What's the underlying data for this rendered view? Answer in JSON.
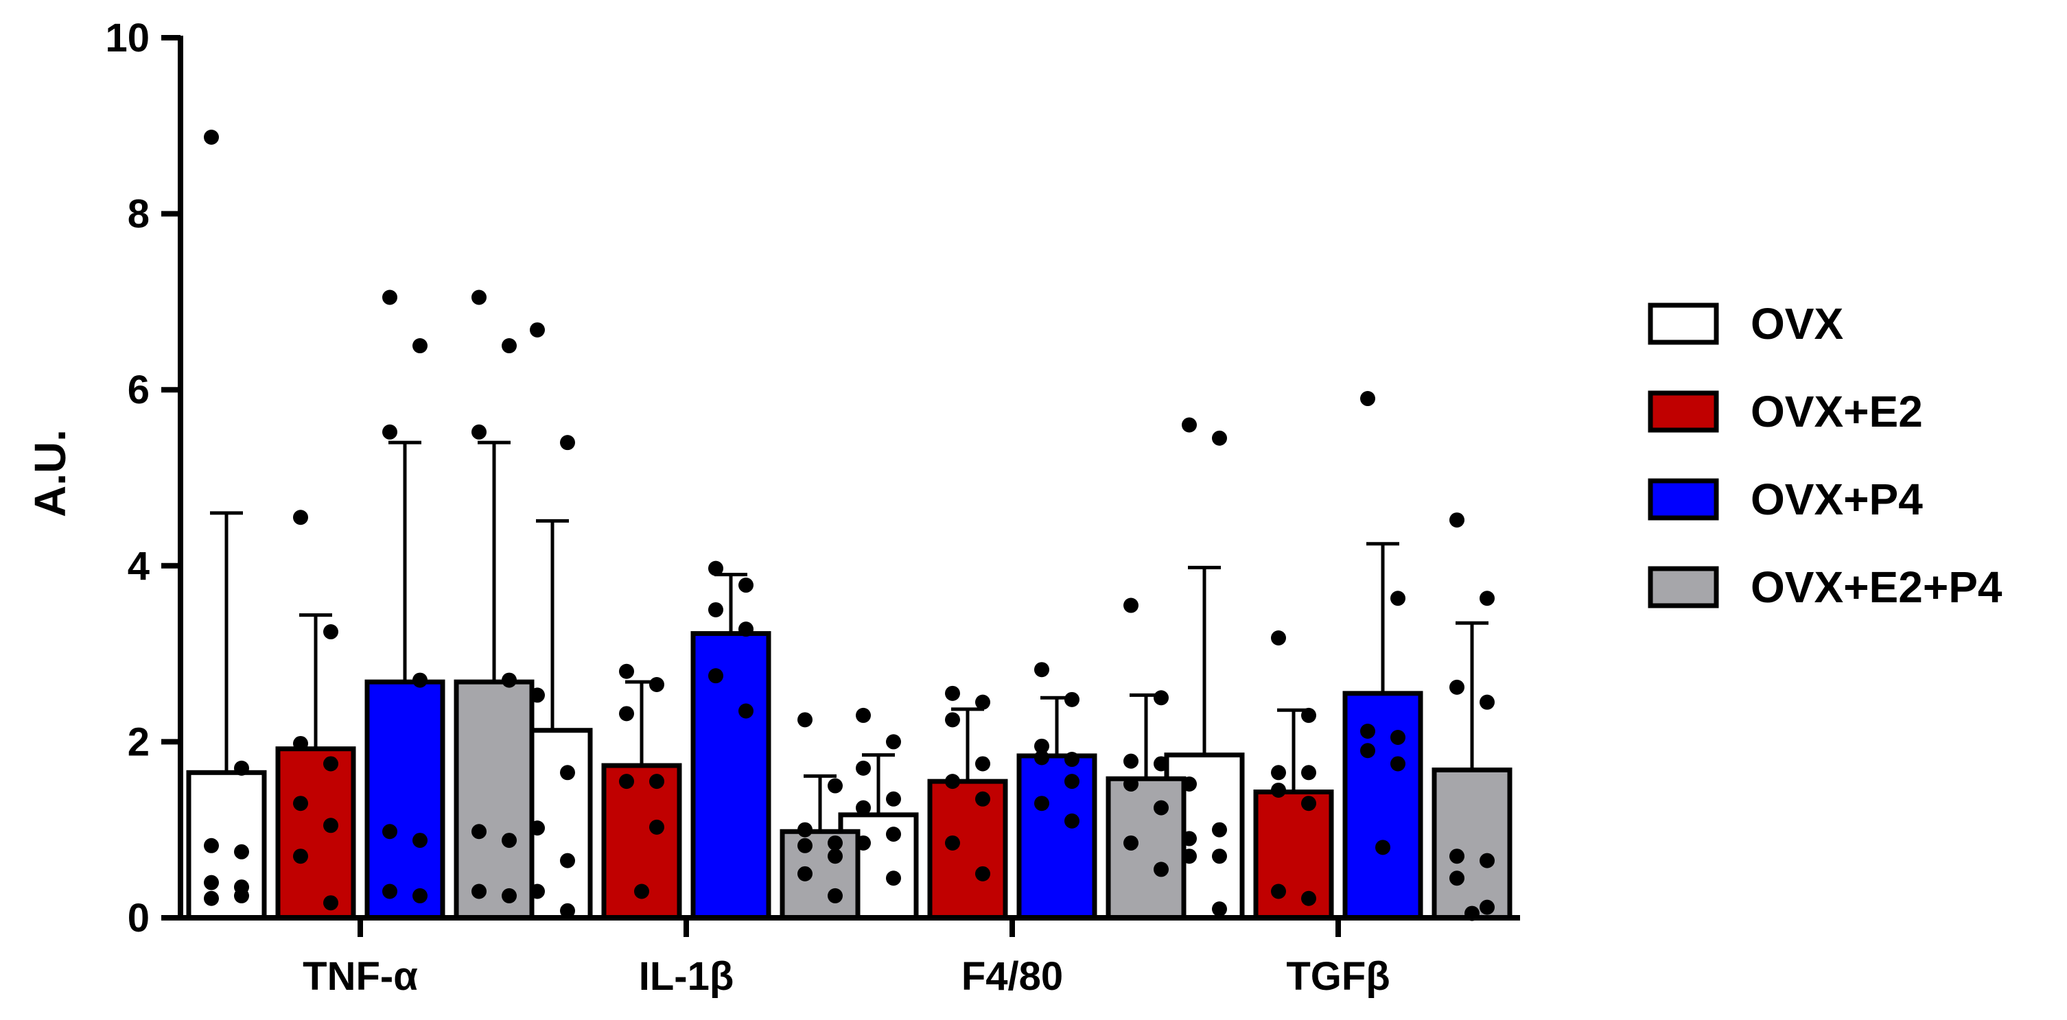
{
  "chart_data": {
    "type": "bar",
    "title": "",
    "xlabel": "",
    "ylabel": "A.U.",
    "ylim": [
      0,
      10
    ],
    "yticks": [
      "0",
      "2",
      "4",
      "6",
      "8",
      "10"
    ],
    "categories": [
      "TNF-α",
      "IL-1β",
      "F4/80",
      "TGFβ"
    ],
    "legend_position": "right",
    "grid": false,
    "series": [
      {
        "name": "OVX",
        "color": "#ffffff",
        "values": [
          1.65,
          2.13,
          1.17,
          1.85
        ],
        "errors": [
          2.95,
          2.38,
          0.68,
          2.13
        ],
        "points": [
          [
            8.87,
            1.7,
            0.82,
            0.75,
            0.4,
            0.35,
            0.22,
            0.25
          ],
          [
            6.68,
            5.4,
            2.53,
            1.65,
            1.02,
            0.65,
            0.3,
            0.08
          ],
          [
            2.3,
            2.0,
            1.7,
            1.35,
            1.25,
            0.95,
            0.85,
            0.45
          ],
          [
            5.6,
            5.45,
            1.52,
            1.0,
            0.9,
            0.7,
            0.7,
            0.1
          ]
        ]
      },
      {
        "name": "OVX+E2",
        "color": "#c00000",
        "values": [
          1.92,
          1.73,
          1.55,
          1.43
        ],
        "errors": [
          1.52,
          0.95,
          0.82,
          0.93
        ],
        "points": [
          [
            4.55,
            3.25,
            1.98,
            1.75,
            1.3,
            1.05,
            0.7,
            0.17
          ],
          [
            2.8,
            2.65,
            2.32,
            1.55,
            1.55,
            1.03,
            0.3
          ],
          [
            2.55,
            2.45,
            2.25,
            1.75,
            1.55,
            1.35,
            0.85,
            0.5
          ],
          [
            3.18,
            2.3,
            1.65,
            1.65,
            1.45,
            1.3,
            0.3,
            0.22
          ]
        ]
      },
      {
        "name": "OVX+P4",
        "color": "#0000ff",
        "values": [
          2.68,
          3.23,
          1.84,
          2.55
        ],
        "errors": [
          2.72,
          0.67,
          0.66,
          1.7
        ],
        "points": [
          [
            7.05,
            6.5,
            5.52,
            2.7,
            0.98,
            0.88,
            0.3,
            0.25
          ],
          [
            3.97,
            3.78,
            3.5,
            3.28,
            2.75,
            2.35
          ],
          [
            2.82,
            2.48,
            1.95,
            1.8,
            1.82,
            1.55,
            1.3,
            1.1
          ],
          [
            5.9,
            3.63,
            2.12,
            2.05,
            1.9,
            1.75,
            0.8
          ]
        ]
      },
      {
        "name": "OVX+E2+P4",
        "color": "#a6a6aa",
        "values": [
          2.68,
          0.98,
          1.58,
          1.68
        ],
        "errors": [
          2.72,
          0.63,
          0.95,
          1.67
        ],
        "points": [
          [
            7.05,
            6.5,
            5.52,
            2.7,
            0.98,
            0.88,
            0.3,
            0.25
          ],
          [
            2.25,
            1.5,
            1.0,
            0.85,
            0.82,
            0.7,
            0.5,
            0.25
          ],
          [
            3.55,
            2.5,
            1.78,
            1.75,
            1.52,
            1.25,
            0.85,
            0.55
          ],
          [
            4.52,
            3.63,
            2.62,
            2.45,
            0.7,
            0.65,
            0.45,
            0.12,
            0.05
          ]
        ]
      }
    ]
  }
}
